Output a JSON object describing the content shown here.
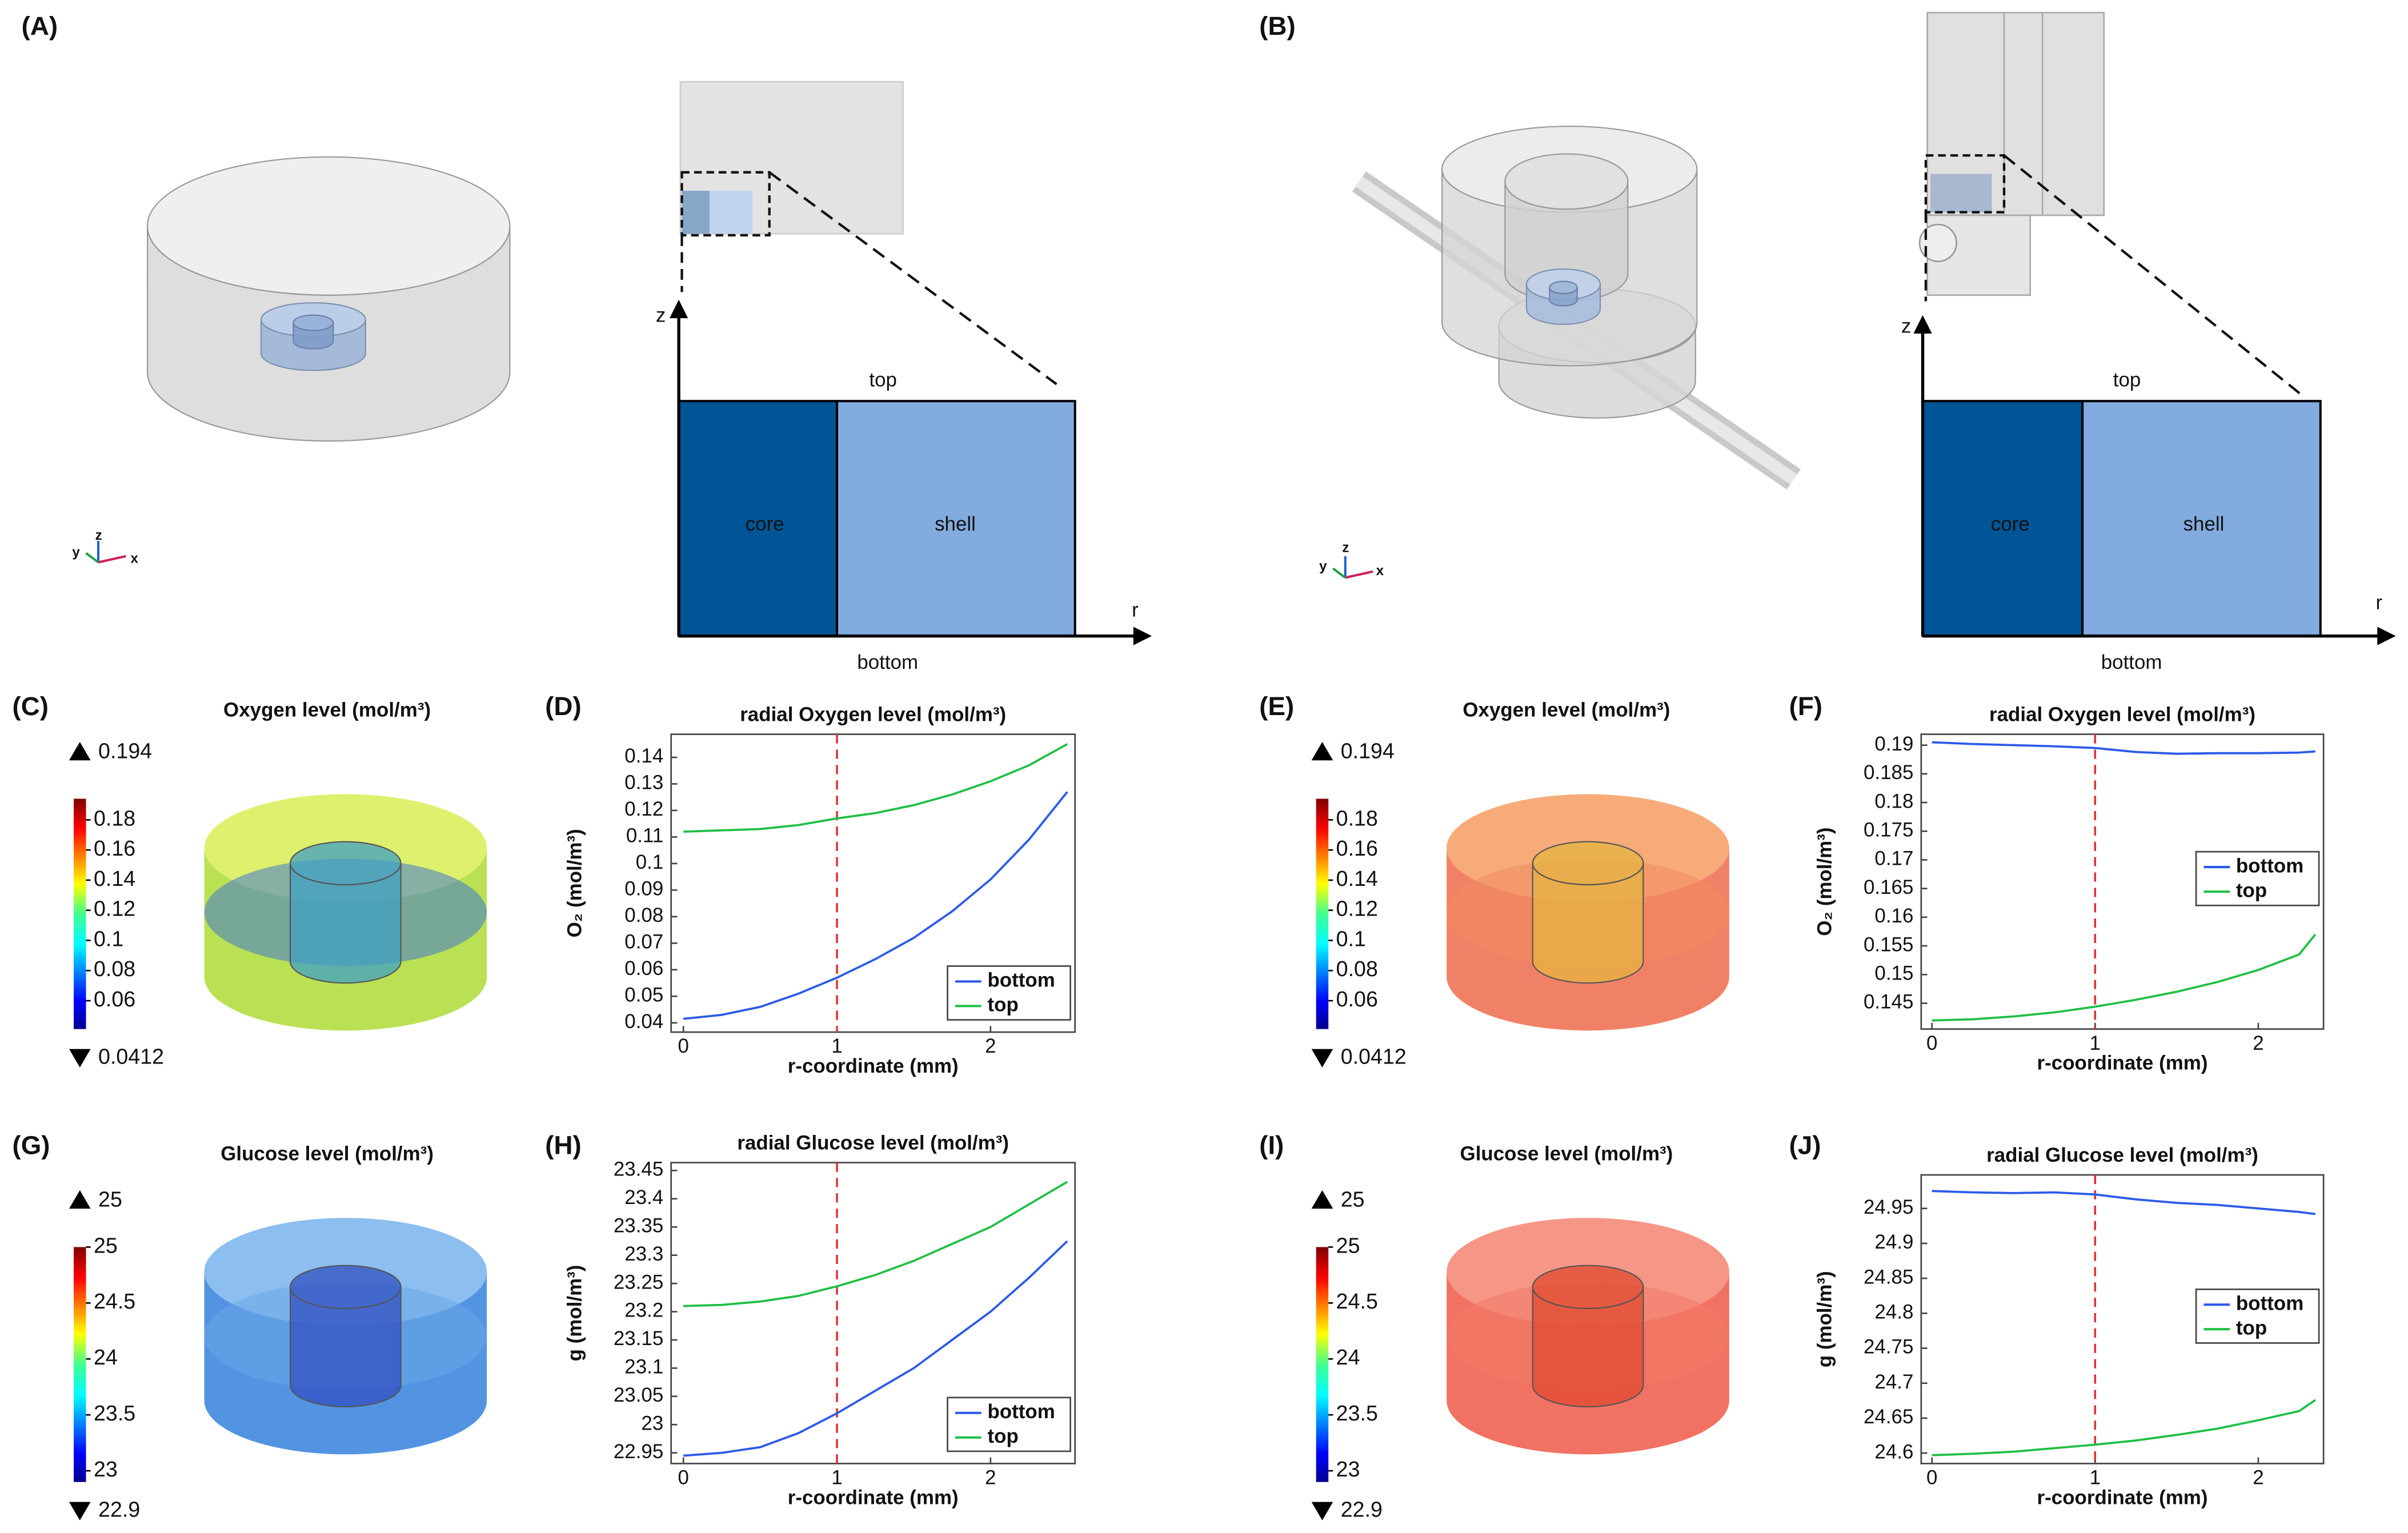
{
  "panel_labels": [
    "(A)",
    "(B)",
    "(C)",
    "(D)",
    "(E)",
    "(F)",
    "(G)",
    "(H)",
    "(I)",
    "(J)"
  ],
  "triads": [
    [
      "x",
      "y",
      "z"
    ],
    [
      "x",
      "y",
      "z"
    ]
  ],
  "schematics": [
    {
      "z": "z",
      "r": "r",
      "top": "top",
      "bottom": "bottom",
      "core": "core",
      "shell": "shell"
    },
    {
      "z": "z",
      "r": "r",
      "top": "top",
      "bottom": "bottom",
      "core": "core",
      "shell": "shell"
    }
  ],
  "colorbars": [
    {
      "title": "Oxygen level (mol/m³)",
      "max": 0.194,
      "min": 0.0412,
      "ticks": [
        0.06,
        0.08,
        0.1,
        0.12,
        0.14,
        0.16,
        0.18
      ]
    },
    {
      "title": "Oxygen level (mol/m³)",
      "max": 0.194,
      "min": 0.0412,
      "ticks": [
        0.06,
        0.08,
        0.1,
        0.12,
        0.14,
        0.16,
        0.18
      ]
    },
    {
      "title": "Glucose level (mol/m³)",
      "max": 25,
      "min": 22.9,
      "ticks": [
        23,
        23.5,
        24,
        24.5,
        25
      ]
    },
    {
      "title": "Glucose level (mol/m³)",
      "max": 25,
      "min": 22.9,
      "ticks": [
        23,
        23.5,
        24,
        24.5,
        25
      ]
    }
  ],
  "chart_data": [
    {
      "type": "line",
      "title": "radial Oxygen level (mol/m³)",
      "x_label": "r-coordinate (mm)",
      "y_label": "O₂ (mol/m³)",
      "x": [
        0,
        0.25,
        0.5,
        0.75,
        1,
        1.25,
        1.5,
        1.75,
        2,
        2.25,
        2.5
      ],
      "series": [
        {
          "name": "bottom",
          "color": "#2b5ae8",
          "values": [
            0.0415,
            0.043,
            0.046,
            0.051,
            0.057,
            0.064,
            0.072,
            0.082,
            0.094,
            0.109,
            0.127
          ]
        },
        {
          "name": "top",
          "color": "#1fbf45",
          "values": [
            0.112,
            0.1125,
            0.113,
            0.1145,
            0.117,
            0.119,
            0.122,
            0.126,
            0.131,
            0.137,
            0.145
          ]
        }
      ],
      "xlim": [
        -0.08,
        2.55
      ],
      "ylim": [
        0.0365,
        0.1487
      ],
      "xticks": [
        0,
        1,
        2
      ],
      "yticks": [
        0.04,
        0.05,
        0.06,
        0.07,
        0.08,
        0.09,
        0.1,
        0.11,
        0.12,
        0.13,
        0.14
      ],
      "vline": 1,
      "legend": "lower right"
    },
    {
      "type": "line",
      "title": "radial Oxygen level (mol/m³)",
      "x_label": "r-coordinate (mm)",
      "y_label": "O₂ (mol/m³)",
      "x": [
        0,
        0.25,
        0.5,
        0.75,
        1,
        1.25,
        1.5,
        1.75,
        2,
        2.25,
        2.35
      ],
      "series": [
        {
          "name": "bottom",
          "color": "#2b5ae8",
          "values": [
            0.1905,
            0.1902,
            0.19,
            0.1898,
            0.1895,
            0.1888,
            0.1885,
            0.1886,
            0.1886,
            0.1887,
            0.1889
          ]
        },
        {
          "name": "top",
          "color": "#1fbf45",
          "values": [
            0.142,
            0.1422,
            0.1427,
            0.1434,
            0.1444,
            0.1456,
            0.147,
            0.1487,
            0.1508,
            0.1535,
            0.157
          ]
        }
      ],
      "xlim": [
        -0.066,
        2.4
      ],
      "ylim": [
        0.1405,
        0.1919
      ],
      "xticks": [
        0,
        1,
        2
      ],
      "yticks": [
        0.145,
        0.15,
        0.155,
        0.16,
        0.165,
        0.17,
        0.175,
        0.18,
        0.185,
        0.19
      ],
      "vline": 1,
      "legend": "right"
    },
    {
      "type": "line",
      "title": "radial Glucose level (mol/m³)",
      "x_label": "r-coordinate (mm)",
      "y_label": "g (mol/m³)",
      "x": [
        0,
        0.25,
        0.5,
        0.75,
        1,
        1.25,
        1.5,
        1.75,
        2,
        2.25,
        2.5
      ],
      "series": [
        {
          "name": "bottom",
          "color": "#2b5ae8",
          "values": [
            22.945,
            22.95,
            22.96,
            22.985,
            23.02,
            23.06,
            23.1,
            23.15,
            23.2,
            23.26,
            23.325
          ]
        },
        {
          "name": "top",
          "color": "#1fbf45",
          "values": [
            23.21,
            23.212,
            23.218,
            23.228,
            23.245,
            23.265,
            23.29,
            23.32,
            23.35,
            23.39,
            23.43
          ]
        }
      ],
      "xlim": [
        -0.08,
        2.55
      ],
      "ylim": [
        22.931,
        23.464
      ],
      "xticks": [
        0,
        1,
        2
      ],
      "yticks": [
        22.95,
        23,
        23.05,
        23.1,
        23.15,
        23.2,
        23.25,
        23.3,
        23.35,
        23.4,
        23.45
      ],
      "vline": 1,
      "legend": "lower right"
    },
    {
      "type": "line",
      "title": "radial Glucose level (mol/m³)",
      "x_label": "r-coordinate (mm)",
      "y_label": "g (mol/m³)",
      "x": [
        0,
        0.25,
        0.5,
        0.75,
        1,
        1.25,
        1.5,
        1.75,
        2,
        2.25,
        2.35
      ],
      "series": [
        {
          "name": "bottom",
          "color": "#2b5ae8",
          "values": [
            24.975,
            24.973,
            24.972,
            24.973,
            24.97,
            24.963,
            24.958,
            24.955,
            24.95,
            24.945,
            24.942
          ]
        },
        {
          "name": "top",
          "color": "#1fbf45",
          "values": [
            24.597,
            24.599,
            24.602,
            24.607,
            24.612,
            24.618,
            24.626,
            24.635,
            24.647,
            24.66,
            24.676
          ]
        }
      ],
      "xlim": [
        -0.066,
        2.4
      ],
      "ylim": [
        24.585,
        24.998
      ],
      "xticks": [
        0,
        1,
        2
      ],
      "yticks": [
        24.6,
        24.65,
        24.7,
        24.75,
        24.8,
        24.85,
        24.9,
        24.95
      ],
      "vline": 1,
      "legend": "right"
    }
  ]
}
